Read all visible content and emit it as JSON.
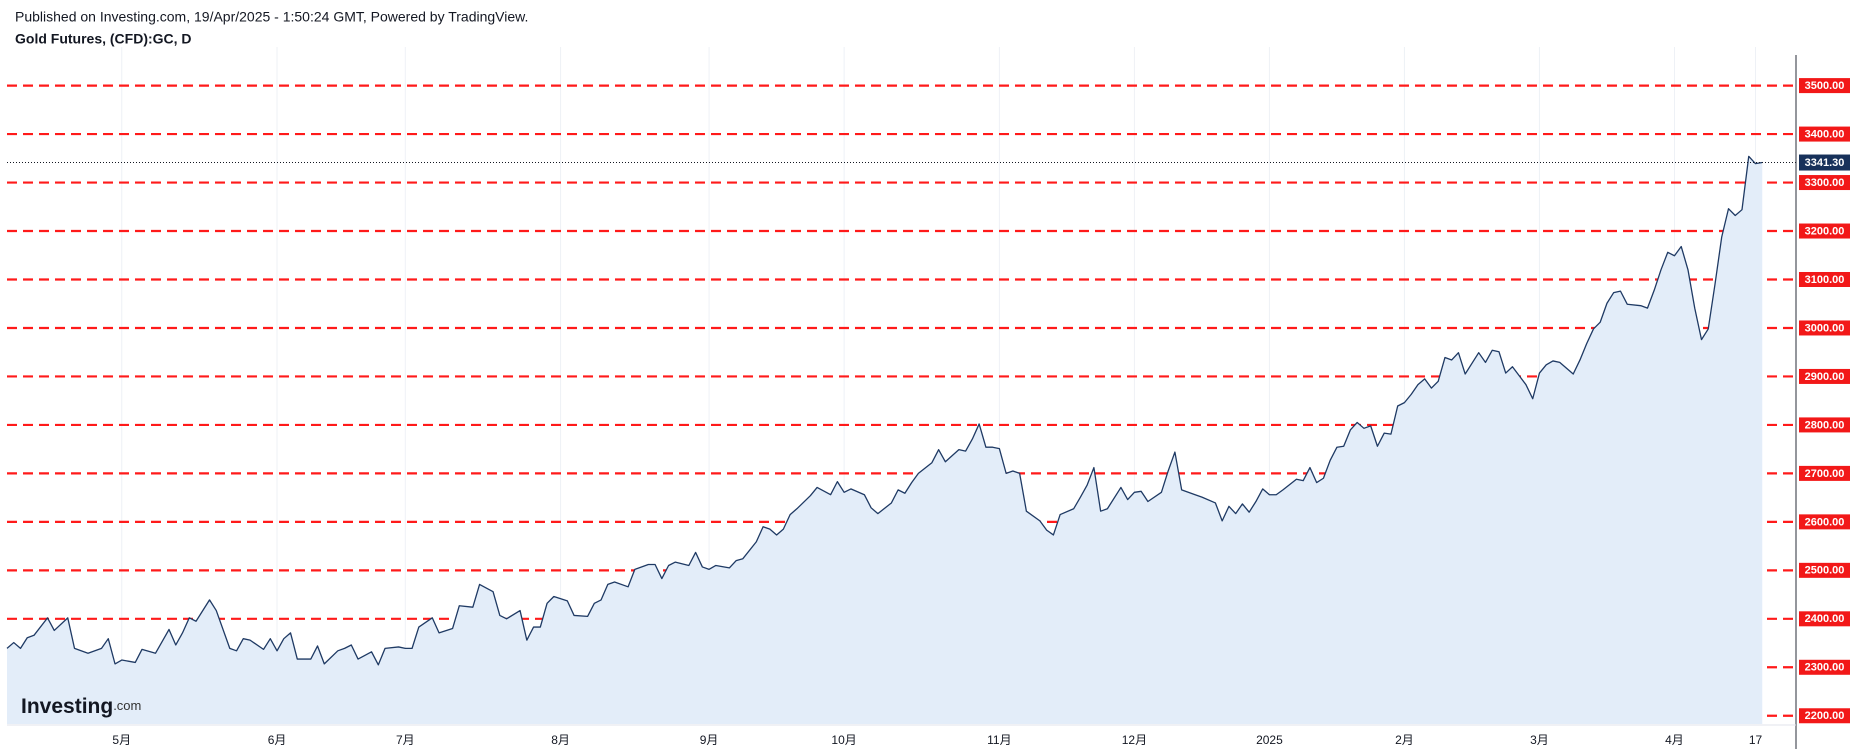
{
  "published": "Published on Investing.com, 19/Apr/2025 - 1:50:24 GMT, Powered by TradingView.",
  "logo": {
    "brand": "Investing",
    "suffix": ".com"
  },
  "chart_data": {
    "type": "area",
    "title": "Gold Futures, (CFD):GC, D",
    "color": "#1f3a64",
    "fill": "#e3edf9",
    "grid": true,
    "grid_color": "#ff1a1a",
    "label_box_color": "#f21818",
    "last_price": {
      "value": 3341.3,
      "label": "3341.30"
    },
    "last_price_color": "#17315a",
    "xlim": [
      0,
      265
    ],
    "ylim": [
      2183,
      3559
    ],
    "yticks": [
      {
        "value": 2200,
        "label": "2200.00"
      },
      {
        "value": 2300,
        "label": "2300.00"
      },
      {
        "value": 2400,
        "label": "2400.00"
      },
      {
        "value": 2500,
        "label": "2500.00"
      },
      {
        "value": 2600,
        "label": "2600.00"
      },
      {
        "value": 2700,
        "label": "2700.00"
      },
      {
        "value": 2800,
        "label": "2800.00"
      },
      {
        "value": 2900,
        "label": "2900.00"
      },
      {
        "value": 3000,
        "label": "3000.00"
      },
      {
        "value": 3100,
        "label": "3100.00"
      },
      {
        "value": 3200,
        "label": "3200.00"
      },
      {
        "value": 3300,
        "label": "3300.00"
      },
      {
        "value": 3400,
        "label": "3400.00"
      },
      {
        "value": 3500,
        "label": "3500.00"
      }
    ],
    "xticks": [
      {
        "value": 17,
        "label": "5月"
      },
      {
        "value": 40,
        "label": "6月"
      },
      {
        "value": 59,
        "label": "7月"
      },
      {
        "value": 82,
        "label": "8月"
      },
      {
        "value": 104,
        "label": "9月"
      },
      {
        "value": 124,
        "label": "10月"
      },
      {
        "value": 147,
        "label": "11月"
      },
      {
        "value": 167,
        "label": "12月"
      },
      {
        "value": 187,
        "label": "2025"
      },
      {
        "value": 207,
        "label": "2月"
      },
      {
        "value": 227,
        "label": "3月"
      },
      {
        "value": 247,
        "label": "4月"
      },
      {
        "value": 259,
        "label": "17"
      }
    ],
    "x": [
      0,
      1,
      2,
      3,
      4,
      6,
      7,
      9,
      10,
      12,
      14,
      15,
      16,
      17,
      19,
      20,
      22,
      24,
      25,
      26,
      27,
      28,
      30,
      31,
      33,
      34,
      35,
      36,
      38,
      39,
      40,
      41,
      42,
      43,
      45,
      46,
      47,
      49,
      50,
      51,
      52,
      54,
      55,
      56,
      58,
      59,
      60,
      61,
      63,
      64,
      66,
      67,
      69,
      70,
      72,
      73,
      74,
      76,
      77,
      78,
      79,
      80,
      81,
      83,
      84,
      86,
      87,
      88,
      89,
      90,
      92,
      93,
      95,
      96,
      97,
      98,
      99,
      101,
      102,
      103,
      104,
      105,
      107,
      108,
      109,
      111,
      112,
      113,
      114,
      115,
      116,
      117,
      119,
      120,
      122,
      123,
      124,
      125,
      127,
      128,
      129,
      131,
      132,
      133,
      134,
      135,
      137,
      138,
      139,
      141,
      142,
      143,
      144,
      145,
      146,
      147,
      148,
      149,
      150,
      151,
      153,
      154,
      155,
      156,
      158,
      159,
      160,
      161,
      162,
      163,
      165,
      166,
      167,
      168,
      169,
      171,
      172,
      173,
      174,
      176,
      177,
      179,
      180,
      181,
      182,
      183,
      184,
      185,
      186,
      187,
      188,
      189,
      191,
      192,
      193,
      194,
      195,
      196,
      197,
      198,
      199,
      200,
      201,
      202,
      203,
      204,
      205,
      206,
      207,
      208,
      209,
      210,
      211,
      212,
      213,
      214,
      215,
      216,
      218,
      219,
      220,
      221,
      222,
      223,
      225,
      226,
      227,
      228,
      229,
      230,
      232,
      233,
      234,
      235,
      236,
      237,
      238,
      239,
      240,
      242,
      243,
      244,
      245,
      246,
      247,
      248,
      249,
      250,
      251,
      252,
      253,
      254,
      255,
      256,
      257,
      258,
      259,
      260
    ],
    "values": [
      2339,
      2351,
      2339,
      2361,
      2366,
      2402,
      2376,
      2402,
      2339,
      2329,
      2339,
      2359,
      2307,
      2315,
      2310,
      2337,
      2329,
      2378,
      2346,
      2371,
      2402,
      2395,
      2439,
      2417,
      2339,
      2334,
      2359,
      2356,
      2337,
      2359,
      2334,
      2359,
      2371,
      2317,
      2317,
      2344,
      2307,
      2334,
      2339,
      2346,
      2317,
      2332,
      2305,
      2339,
      2342,
      2339,
      2339,
      2383,
      2402,
      2371,
      2380,
      2427,
      2424,
      2471,
      2456,
      2407,
      2400,
      2417,
      2356,
      2383,
      2383,
      2432,
      2446,
      2437,
      2407,
      2405,
      2432,
      2439,
      2471,
      2476,
      2466,
      2502,
      2512,
      2512,
      2483,
      2510,
      2517,
      2510,
      2537,
      2507,
      2502,
      2510,
      2505,
      2520,
      2524,
      2559,
      2590,
      2585,
      2573,
      2585,
      2615,
      2627,
      2654,
      2671,
      2656,
      2683,
      2661,
      2668,
      2656,
      2629,
      2617,
      2639,
      2666,
      2659,
      2681,
      2700,
      2722,
      2749,
      2724,
      2749,
      2746,
      2771,
      2802,
      2754,
      2754,
      2751,
      2700,
      2705,
      2700,
      2622,
      2602,
      2583,
      2573,
      2615,
      2627,
      2651,
      2676,
      2712,
      2622,
      2627,
      2671,
      2646,
      2661,
      2663,
      2642,
      2661,
      2705,
      2744,
      2666,
      2656,
      2651,
      2639,
      2602,
      2632,
      2617,
      2637,
      2620,
      2642,
      2668,
      2656,
      2656,
      2666,
      2688,
      2685,
      2712,
      2681,
      2690,
      2727,
      2754,
      2756,
      2790,
      2805,
      2793,
      2798,
      2756,
      2783,
      2781,
      2839,
      2846,
      2863,
      2883,
      2895,
      2876,
      2890,
      2939,
      2934,
      2949,
      2905,
      2949,
      2929,
      2954,
      2951,
      2907,
      2920,
      2883,
      2854,
      2907,
      2924,
      2932,
      2929,
      2905,
      2934,
      2968,
      2998,
      3012,
      3051,
      3073,
      3076,
      3049,
      3046,
      3041,
      3078,
      3120,
      3156,
      3149,
      3168,
      3120,
      3041,
      2976,
      2998,
      3090,
      3188,
      3246,
      3232,
      3244,
      3354,
      3339,
      3341.3
    ]
  }
}
